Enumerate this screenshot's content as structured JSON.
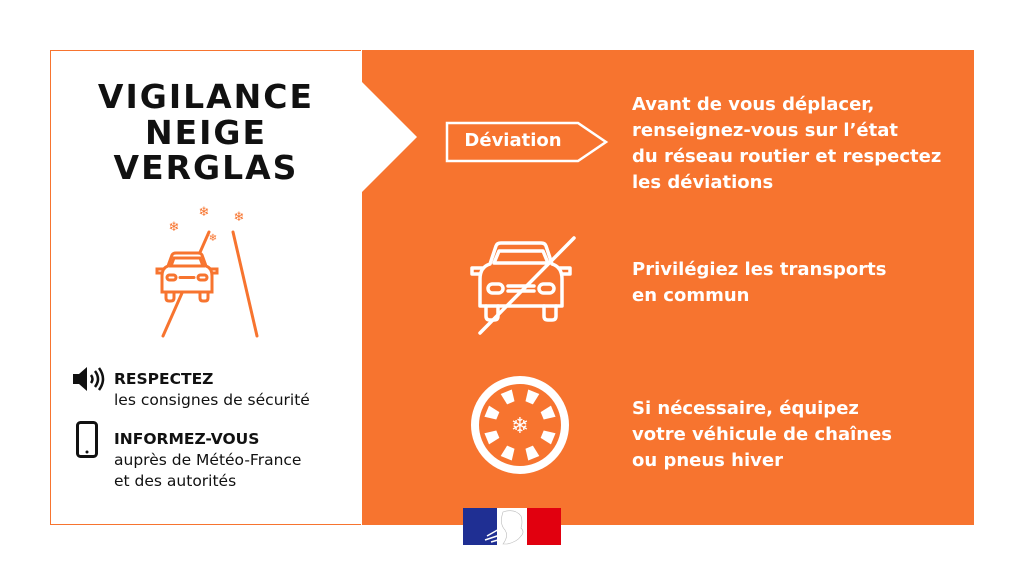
{
  "colors": {
    "accent": "#F7742F",
    "text": "#111111",
    "white": "#FFFFFF"
  },
  "title": {
    "lines": [
      "VIGILANCE",
      "NEIGE",
      "VERGLAS"
    ]
  },
  "left": {
    "illustration": "car-on-snowy-road-icon",
    "items": [
      {
        "icon": "speaker-icon",
        "heading": "RESPECTEZ",
        "lines": [
          "les consignes de sécurité"
        ]
      },
      {
        "icon": "smartphone-icon",
        "heading": "INFORMEZ-VOUS",
        "lines": [
          "auprès de Météo-France",
          "et des autorités"
        ]
      }
    ]
  },
  "right": {
    "items": [
      {
        "icon": "deviation-sign-icon",
        "badge": "Déviation",
        "lines": [
          "Avant de vous déplacer,",
          "renseignez-vous sur l’état",
          "du réseau routier et respectez",
          "les déviations"
        ]
      },
      {
        "icon": "no-car-icon",
        "lines": [
          "Privilégiez les transports",
          "en commun"
        ]
      },
      {
        "icon": "winter-tire-icon",
        "lines": [
          "Si nécessaire, équipez",
          "votre véhicule de chaînes",
          "ou pneus hiver"
        ]
      }
    ]
  },
  "logo": "marianne-republique-francaise-logo"
}
